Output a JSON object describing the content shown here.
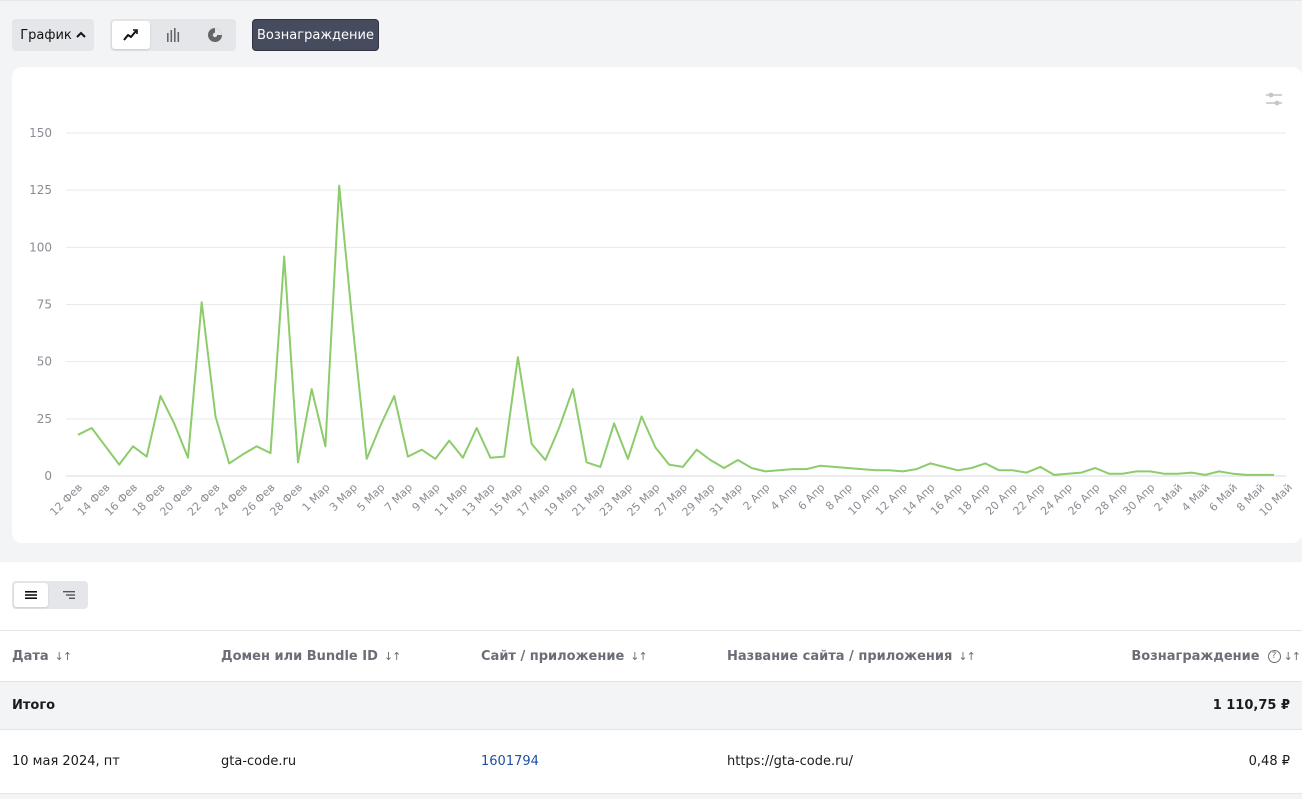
{
  "toolbar": {
    "chart_label": "График",
    "reward_button": "Вознаграждение"
  },
  "chart_data": {
    "type": "line",
    "title": "",
    "xlabel": "",
    "ylabel": "",
    "ylim": [
      0,
      150
    ],
    "yticks": [
      0,
      25,
      50,
      75,
      100,
      125,
      150
    ],
    "grid": true,
    "color": "#8ccc6a",
    "xtick_labels": [
      "12 Фев",
      "14 Фев",
      "16 Фев",
      "18 Фев",
      "20 Фев",
      "22 Фев",
      "24 Фев",
      "26 Фев",
      "28 Фев",
      "1 Мар",
      "3 Мар",
      "5 Мар",
      "7 Мар",
      "9 Мар",
      "11 Мар",
      "13 Мар",
      "15 Мар",
      "17 Мар",
      "19 Мар",
      "21 Мар",
      "23 Мар",
      "25 Мар",
      "27 Мар",
      "29 Мар",
      "31 Мар",
      "2 Апр",
      "4 Апр",
      "6 Апр",
      "8 Апр",
      "10 Апр",
      "12 Апр",
      "14 Апр",
      "16 Апр",
      "18 Апр",
      "20 Апр",
      "22 Апр",
      "24 Апр",
      "26 Апр",
      "28 Апр",
      "30 Апр",
      "2 Май",
      "4 Май",
      "6 Май",
      "8 Май",
      "10 Май"
    ],
    "values": [
      18,
      21,
      13,
      5,
      13,
      8.5,
      35,
      23,
      8,
      76,
      26,
      5.5,
      9.5,
      13,
      10,
      96,
      6,
      38,
      13,
      127,
      65,
      7.5,
      22,
      35,
      8.5,
      11.5,
      7.5,
      15.5,
      8,
      21,
      8,
      8.5,
      52,
      14,
      7,
      21,
      38,
      6,
      4,
      23,
      7.5,
      26,
      12.5,
      5,
      4,
      11.5,
      7,
      3.5,
      7,
      3.5,
      2,
      2.5,
      3,
      3,
      4.5,
      4,
      3.5,
      3,
      2.5,
      2.5,
      2,
      3,
      5.5,
      4,
      2.5,
      3.5,
      5.5,
      2.5,
      2.5,
      1.5,
      4,
      0.5,
      1,
      1.5,
      3.5,
      1,
      1,
      2,
      2,
      1,
      1,
      1.5,
      0.5,
      2,
      1,
      0.5,
      0.5,
      0.5
    ]
  },
  "table": {
    "columns": {
      "date": "Дата",
      "domain": "Домен или Bundle ID",
      "site": "Сайт / приложение",
      "site_name": "Название сайта / приложения",
      "reward": "Вознаграждение"
    },
    "sort_glyph": "↓↑",
    "help_glyph": "?",
    "total": {
      "label": "Итого",
      "reward": "1 110,75 ₽"
    },
    "rows": [
      {
        "date": "10 мая 2024, пт",
        "domain": "gta-code.ru",
        "site": "1601794",
        "site_name": "https://gta-code.ru/",
        "reward": "0,48 ₽"
      }
    ]
  }
}
